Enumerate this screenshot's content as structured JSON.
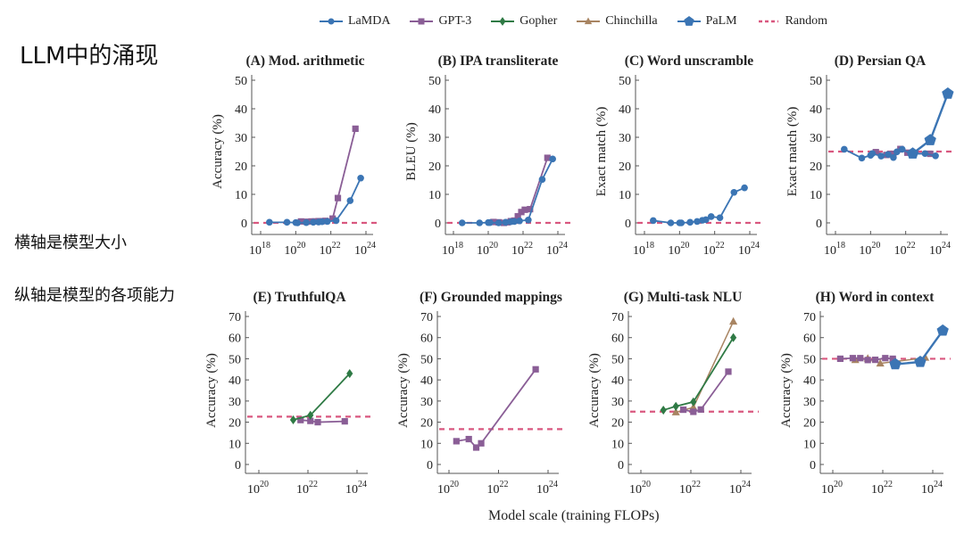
{
  "side_notes": {
    "title": "LLM中的涌现",
    "x_note": "横轴是模型大小",
    "y_note": "纵轴是模型的各项能力"
  },
  "legend": [
    {
      "name": "LaMDA",
      "color": "#3b75b4",
      "marker": "circle"
    },
    {
      "name": "GPT-3",
      "color": "#8a5e96",
      "marker": "square"
    },
    {
      "name": "Gopher",
      "color": "#2f7a45",
      "marker": "diamond"
    },
    {
      "name": "Chinchilla",
      "color": "#a88462",
      "marker": "triangle"
    },
    {
      "name": "PaLM",
      "color": "#3b75b4",
      "marker": "pentagon"
    },
    {
      "name": "Random",
      "color": "#d9577f",
      "marker": "dashed"
    }
  ],
  "xlabel": "Model scale (training FLOPs)",
  "chart_data": [
    {
      "type": "line",
      "id": "A",
      "title": "(A) Mod. arithmetic",
      "ylabel": "Accuracy (%)",
      "xscale": "log10",
      "xlim": [
        18,
        24
      ],
      "xticks": [
        "10^18",
        "10^20",
        "10^22",
        "10^24"
      ],
      "ylim": [
        0,
        50
      ],
      "yticks": [
        0,
        10,
        20,
        30,
        40,
        50
      ],
      "random": 0,
      "series": [
        {
          "name": "LaMDA",
          "x": [
            18.5,
            19.5,
            20.0,
            20.1,
            20.6,
            21.0,
            21.3,
            21.5,
            21.8,
            22.3,
            23.1,
            23.7
          ],
          "y": [
            0.2,
            0.2,
            0.1,
            0.0,
            0.1,
            0.2,
            0.3,
            0.4,
            0.5,
            0.8,
            7.8,
            15.7
          ]
        },
        {
          "name": "GPT-3",
          "x": [
            20.3,
            20.6,
            20.9,
            21.1,
            21.3,
            21.5,
            21.7,
            22.1,
            22.4,
            23.4
          ],
          "y": [
            0.5,
            0.4,
            0.5,
            0.5,
            0.6,
            0.6,
            0.7,
            1.5,
            8.7,
            33.0
          ]
        }
      ]
    },
    {
      "type": "line",
      "id": "B",
      "title": "(B) IPA transliterate",
      "ylabel": "BLEU (%)",
      "xscale": "log10",
      "xlim": [
        18,
        24
      ],
      "xticks": [
        "10^18",
        "10^20",
        "10^22",
        "10^24"
      ],
      "ylim": [
        0,
        50
      ],
      "yticks": [
        0,
        10,
        20,
        30,
        40,
        50
      ],
      "random": 0,
      "series": [
        {
          "name": "LaMDA",
          "x": [
            18.5,
            19.5,
            20.0,
            20.1,
            20.6,
            21.0,
            21.3,
            21.5,
            21.8,
            22.3,
            23.1,
            23.7
          ],
          "y": [
            0.0,
            0.0,
            0.1,
            0.1,
            0.0,
            0.2,
            0.4,
            0.5,
            0.7,
            1.0,
            15.2,
            22.4
          ]
        },
        {
          "name": "GPT-3",
          "x": [
            20.3,
            20.6,
            20.9,
            21.1,
            21.3,
            21.5,
            21.7,
            21.9,
            22.1,
            22.4,
            23.4
          ],
          "y": [
            0.3,
            0.2,
            0.0,
            0.2,
            0.6,
            0.8,
            2.3,
            3.8,
            4.6,
            4.8,
            22.8
          ]
        }
      ]
    },
    {
      "type": "line",
      "id": "C",
      "title": "(C) Word unscramble",
      "ylabel": "Exact match (%)",
      "xscale": "log10",
      "xlim": [
        18,
        24
      ],
      "xticks": [
        "10^18",
        "10^20",
        "10^22",
        "10^24"
      ],
      "ylim": [
        0,
        50
      ],
      "yticks": [
        0,
        10,
        20,
        30,
        40,
        50
      ],
      "random": 0,
      "series": [
        {
          "name": "LaMDA",
          "x": [
            18.5,
            19.5,
            20.0,
            20.1,
            20.6,
            21.0,
            21.3,
            21.5,
            21.8,
            22.3,
            23.1,
            23.7
          ],
          "y": [
            0.8,
            0.0,
            0.0,
            0.0,
            0.2,
            0.5,
            0.9,
            1.1,
            2.2,
            1.8,
            10.7,
            12.3
          ]
        }
      ]
    },
    {
      "type": "line",
      "id": "D",
      "title": "(D) Persian QA",
      "ylabel": "Exact match (%)",
      "xscale": "log10",
      "xlim": [
        18,
        24
      ],
      "xticks": [
        "10^18",
        "10^20",
        "10^22",
        "10^24"
      ],
      "ylim": [
        0,
        50
      ],
      "yticks": [
        0,
        10,
        20,
        30,
        40,
        50
      ],
      "random": 25,
      "series": [
        {
          "name": "LaMDA",
          "x": [
            18.5,
            19.5,
            20.0,
            20.1,
            20.6,
            21.0,
            21.3,
            21.5,
            21.8,
            22.3,
            23.1,
            23.7
          ],
          "y": [
            25.8,
            22.7,
            23.7,
            24.3,
            23.4,
            24.0,
            22.9,
            24.9,
            25.8,
            24.1,
            24.3,
            23.5
          ]
        },
        {
          "name": "GPT-3",
          "x": [
            20.3,
            20.9,
            21.1,
            21.3,
            21.7,
            22.1,
            22.4,
            23.4
          ],
          "y": [
            24.8,
            23.8,
            24.0,
            24.2,
            25.9,
            24.6,
            24.4,
            24.2
          ]
        },
        {
          "name": "PaLM",
          "x": [
            22.4,
            23.4,
            24.4
          ],
          "y": [
            24.3,
            29.0,
            45.3
          ]
        }
      ]
    },
    {
      "type": "line",
      "id": "E",
      "title": "(E) TruthfulQA",
      "ylabel": "Accuracy (%)",
      "xscale": "log10",
      "xlim": [
        19.5,
        24.5
      ],
      "xticks": [
        "10^20",
        "10^22",
        "10^24"
      ],
      "ylim": [
        0,
        70
      ],
      "yticks": [
        0,
        10,
        20,
        30,
        40,
        50,
        60,
        70
      ],
      "random": 22.6,
      "series": [
        {
          "name": "GPT-3",
          "x": [
            21.7,
            22.1,
            22.4,
            23.5
          ],
          "y": [
            21.0,
            20.6,
            20.0,
            20.4
          ]
        },
        {
          "name": "Gopher",
          "x": [
            21.4,
            22.1,
            23.7
          ],
          "y": [
            21.1,
            23.3,
            43.0
          ]
        }
      ]
    },
    {
      "type": "line",
      "id": "F",
      "title": "(F) Grounded mappings",
      "ylabel": "Accuracy (%)",
      "xscale": "log10",
      "xlim": [
        19.5,
        24.5
      ],
      "xticks": [
        "10^20",
        "10^22",
        "10^24"
      ],
      "ylim": [
        0,
        70
      ],
      "yticks": [
        0,
        10,
        20,
        30,
        40,
        50,
        60,
        70
      ],
      "random": 16.7,
      "series": [
        {
          "name": "GPT-3",
          "x": [
            20.3,
            20.8,
            21.1,
            21.3,
            23.5
          ],
          "y": [
            11.0,
            12.0,
            8.0,
            10.0,
            45.0
          ]
        }
      ]
    },
    {
      "type": "line",
      "id": "G",
      "title": "(G) Multi-task NLU",
      "ylabel": "Accuracy (%)",
      "xscale": "log10",
      "xlim": [
        19.5,
        24.5
      ],
      "xticks": [
        "10^20",
        "10^22",
        "10^24"
      ],
      "ylim": [
        0,
        70
      ],
      "yticks": [
        0,
        10,
        20,
        30,
        40,
        50,
        60,
        70
      ],
      "random": 25,
      "series": [
        {
          "name": "GPT-3",
          "x": [
            21.7,
            22.1,
            22.4,
            23.5
          ],
          "y": [
            25.9,
            24.9,
            26.0,
            43.9
          ]
        },
        {
          "name": "Gopher",
          "x": [
            20.9,
            21.4,
            22.1,
            23.7
          ],
          "y": [
            25.7,
            27.5,
            29.6,
            60.0
          ]
        },
        {
          "name": "Chinchilla",
          "x": [
            21.4,
            22.1,
            23.7
          ],
          "y": [
            24.7,
            27.0,
            67.6
          ]
        }
      ]
    },
    {
      "type": "line",
      "id": "H",
      "title": "(H) Word in context",
      "ylabel": "Accuracy (%)",
      "xscale": "log10",
      "xlim": [
        19.5,
        24.5
      ],
      "xticks": [
        "10^20",
        "10^22",
        "10^24"
      ],
      "ylim": [
        0,
        70
      ],
      "yticks": [
        0,
        10,
        20,
        30,
        40,
        50,
        60,
        70
      ],
      "random": 50,
      "series": [
        {
          "name": "GPT-3",
          "x": [
            20.3,
            20.8,
            21.1,
            21.4,
            21.7,
            22.1,
            22.4
          ],
          "y": [
            50.0,
            50.3,
            50.3,
            49.4,
            49.5,
            50.3,
            50.0
          ]
        },
        {
          "name": "Chinchilla",
          "x": [
            20.9,
            21.4,
            21.9,
            23.7
          ],
          "y": [
            49.4,
            50.1,
            47.8,
            50.5
          ]
        },
        {
          "name": "PaLM",
          "x": [
            22.5,
            23.5,
            24.4
          ],
          "y": [
            47.4,
            48.5,
            63.3
          ]
        }
      ]
    }
  ]
}
